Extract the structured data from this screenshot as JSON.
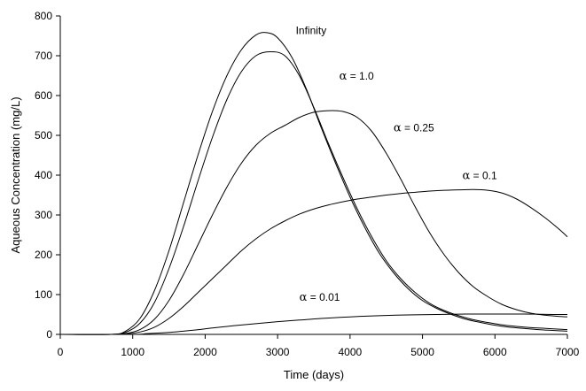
{
  "chart_data": {
    "type": "line",
    "title": "",
    "xlabel": "Time (days)",
    "ylabel": "Aqueous Concentration (mg/L)",
    "xlim": [
      0,
      7000
    ],
    "ylim": [
      0,
      800
    ],
    "xticks": [
      0,
      1000,
      2000,
      3000,
      4000,
      5000,
      6000,
      7000
    ],
    "yticks": [
      0,
      100,
      200,
      300,
      400,
      500,
      600,
      700,
      800
    ],
    "grid": false,
    "legend": "none",
    "series": [
      {
        "name": "Infinity",
        "label_parts": [
          "Infinity"
        ],
        "label_at": [
          3250,
          755
        ],
        "x": [
          0,
          700,
          900,
          1100,
          1300,
          1500,
          1700,
          1900,
          2100,
          2300,
          2500,
          2700,
          2850,
          3000,
          3200,
          3400,
          3600,
          3800,
          4000,
          4200,
          4400,
          4600,
          4800,
          5000,
          5200,
          5400,
          5600,
          5800,
          6000,
          6200,
          6400,
          6600,
          6800,
          7000
        ],
        "y": [
          0,
          0,
          8,
          40,
          110,
          210,
          330,
          450,
          560,
          650,
          715,
          752,
          758,
          745,
          695,
          615,
          520,
          430,
          345,
          270,
          205,
          155,
          115,
          85,
          65,
          50,
          38,
          30,
          23,
          18,
          15,
          12,
          10,
          8
        ]
      },
      {
        "name": "α = 1.0",
        "label_parts": [
          "α",
          " = 1.0"
        ],
        "label_at": [
          3850,
          640
        ],
        "x": [
          0,
          700,
          900,
          1100,
          1300,
          1500,
          1700,
          1900,
          2100,
          2300,
          2500,
          2700,
          2900,
          3100,
          3300,
          3500,
          3700,
          3900,
          4100,
          4300,
          4500,
          4700,
          4900,
          5100,
          5300,
          5500,
          5700,
          5900,
          6100,
          6300,
          6500,
          6700,
          7000
        ],
        "y": [
          0,
          0,
          5,
          28,
          80,
          165,
          270,
          385,
          495,
          590,
          660,
          700,
          710,
          700,
          650,
          570,
          480,
          395,
          315,
          245,
          185,
          140,
          105,
          78,
          60,
          47,
          37,
          30,
          24,
          20,
          17,
          15,
          12
        ]
      },
      {
        "name": "α = 0.25",
        "label_parts": [
          "α",
          " = 0.25"
        ],
        "label_at": [
          4600,
          510
        ],
        "x": [
          0,
          700,
          900,
          1100,
          1300,
          1500,
          1700,
          1900,
          2100,
          2300,
          2500,
          2700,
          2900,
          3100,
          3300,
          3500,
          3700,
          3900,
          4100,
          4300,
          4500,
          4700,
          4900,
          5100,
          5300,
          5500,
          5700,
          5900,
          6100,
          6300,
          6500,
          6700,
          6900,
          7000
        ],
        "y": [
          0,
          0,
          2,
          12,
          38,
          85,
          150,
          225,
          300,
          370,
          430,
          475,
          505,
          525,
          545,
          558,
          562,
          560,
          545,
          510,
          455,
          390,
          320,
          255,
          200,
          155,
          120,
          95,
          75,
          62,
          53,
          48,
          45,
          44
        ]
      },
      {
        "name": "α = 0.1",
        "label_parts": [
          "α",
          " = 0.1"
        ],
        "label_at": [
          5550,
          390
        ],
        "x": [
          0,
          700,
          900,
          1100,
          1300,
          1500,
          1700,
          1900,
          2100,
          2300,
          2500,
          2700,
          2900,
          3100,
          3300,
          3500,
          3700,
          3900,
          4100,
          4300,
          4500,
          4700,
          4900,
          5100,
          5300,
          5500,
          5700,
          5900,
          6100,
          6300,
          6500,
          6700,
          6900,
          7000
        ],
        "y": [
          0,
          0,
          1,
          6,
          18,
          40,
          70,
          105,
          140,
          175,
          210,
          240,
          265,
          285,
          302,
          315,
          325,
          333,
          340,
          345,
          350,
          354,
          357,
          360,
          362,
          363,
          364,
          362,
          355,
          340,
          318,
          292,
          262,
          245
        ]
      },
      {
        "name": "α = 0.01",
        "label_parts": [
          "α",
          " = 0.01"
        ],
        "label_at": [
          3300,
          85
        ],
        "x": [
          0,
          1000,
          1200,
          1500,
          1800,
          2100,
          2400,
          2700,
          3000,
          3300,
          3600,
          4000,
          4400,
          4800,
          5200,
          5600,
          6000,
          6400,
          6800,
          7000
        ],
        "y": [
          0,
          0,
          2,
          5,
          10,
          16,
          22,
          27,
          32,
          36,
          40,
          44,
          47,
          49,
          50,
          51,
          51,
          51,
          50,
          50
        ]
      }
    ]
  }
}
